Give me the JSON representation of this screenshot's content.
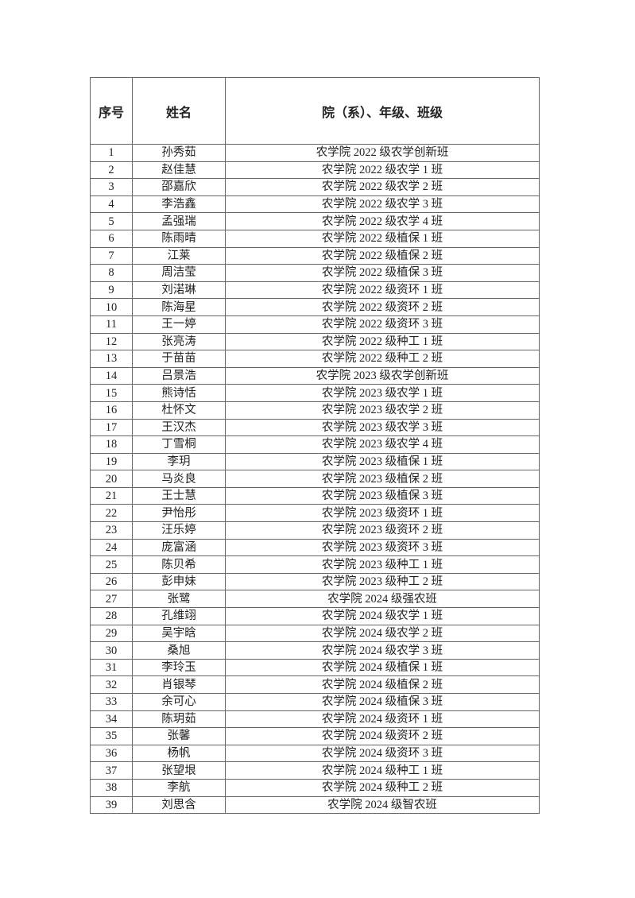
{
  "table": {
    "headers": [
      "序号",
      "姓名",
      "院（系）、年级、班级"
    ],
    "rows": [
      [
        "1",
        "孙秀茹",
        "农学院 2022 级农学创新班"
      ],
      [
        "2",
        "赵佳慧",
        "农学院 2022 级农学 1 班"
      ],
      [
        "3",
        "邵嘉欣",
        "农学院 2022 级农学 2 班"
      ],
      [
        "4",
        "李浩鑫",
        "农学院 2022 级农学 3 班"
      ],
      [
        "5",
        "孟强瑞",
        "农学院 2022 级农学 4 班"
      ],
      [
        "6",
        "陈雨晴",
        "农学院 2022 级植保 1 班"
      ],
      [
        "7",
        "江莱",
        "农学院 2022 级植保 2 班"
      ],
      [
        "8",
        "周洁莹",
        "农学院 2022 级植保 3 班"
      ],
      [
        "9",
        "刘渃琳",
        "农学院 2022 级资环 1 班"
      ],
      [
        "10",
        "陈海星",
        "农学院 2022 级资环 2 班"
      ],
      [
        "11",
        "王一婷",
        "农学院 2022 级资环 3 班"
      ],
      [
        "12",
        "张亮涛",
        "农学院 2022 级种工 1 班"
      ],
      [
        "13",
        "于苗苗",
        "农学院 2022 级种工 2 班"
      ],
      [
        "14",
        "吕景浩",
        "农学院 2023 级农学创新班"
      ],
      [
        "15",
        "熊诗恬",
        "农学院 2023 级农学 1 班"
      ],
      [
        "16",
        "杜怀文",
        "农学院 2023 级农学 2 班"
      ],
      [
        "17",
        "王汉杰",
        "农学院 2023 级农学 3 班"
      ],
      [
        "18",
        "丁雪桐",
        "农学院 2023 级农学 4 班"
      ],
      [
        "19",
        "李玥",
        "农学院 2023 级植保 1 班"
      ],
      [
        "20",
        "马炎良",
        "农学院 2023 级植保 2 班"
      ],
      [
        "21",
        "王士慧",
        "农学院 2023 级植保 3 班"
      ],
      [
        "22",
        "尹怡彤",
        "农学院 2023 级资环 1 班"
      ],
      [
        "23",
        "汪乐婷",
        "农学院 2023 级资环 2 班"
      ],
      [
        "24",
        "庞富涵",
        "农学院 2023 级资环 3 班"
      ],
      [
        "25",
        "陈贝希",
        "农学院 2023 级种工 1 班"
      ],
      [
        "26",
        "彭申妹",
        "农学院 2023 级种工 2 班"
      ],
      [
        "27",
        "张鹭",
        "农学院 2024 级强农班"
      ],
      [
        "28",
        "孔维翊",
        "农学院 2024 级农学 1 班"
      ],
      [
        "29",
        "吴宇晗",
        "农学院 2024 级农学 2 班"
      ],
      [
        "30",
        "桑旭",
        "农学院 2024 级农学 3 班"
      ],
      [
        "31",
        "李玲玉",
        "农学院 2024 级植保 1 班"
      ],
      [
        "32",
        "肖银琴",
        "农学院 2024 级植保 2 班"
      ],
      [
        "33",
        "余可心",
        "农学院 2024 级植保 3 班"
      ],
      [
        "34",
        "陈玥茹",
        "农学院 2024 级资环 1 班"
      ],
      [
        "35",
        "张馨",
        "农学院 2024 级资环 2 班"
      ],
      [
        "36",
        "杨帆",
        "农学院 2024 级资环 3 班"
      ],
      [
        "37",
        "张望垠",
        "农学院 2024 级种工 1 班"
      ],
      [
        "38",
        "李航",
        "农学院 2024 级种工 2 班"
      ],
      [
        "39",
        "刘思含",
        "农学院 2024 级智农班"
      ]
    ]
  }
}
